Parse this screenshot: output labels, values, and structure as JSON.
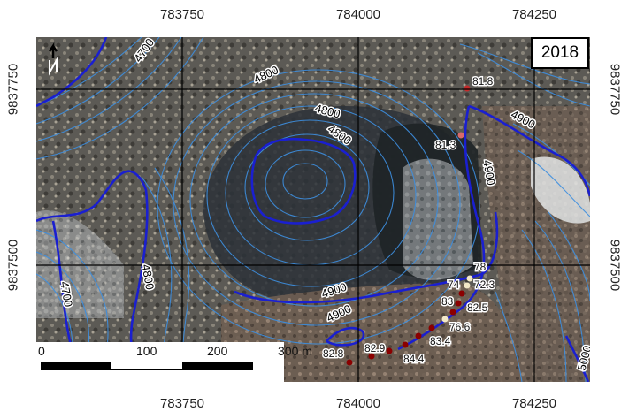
{
  "map": {
    "year": "2018",
    "x_ticks": [
      "783750",
      "784000",
      "784250"
    ],
    "y_ticks": [
      "9837750",
      "9837500"
    ],
    "contour_labels": [
      "4700",
      "4800",
      "4800",
      "4800",
      "4900",
      "4900",
      "4700",
      "4800",
      "4900",
      "4900",
      "5000"
    ],
    "measurements": [
      "81.8",
      "81.3",
      "78",
      "74",
      "72.3",
      "83",
      "82.5",
      "76.6",
      "83.4",
      "82.8",
      "82.9",
      "84.4"
    ],
    "scale": {
      "labels": [
        "0",
        "100",
        "200",
        "300 m"
      ]
    },
    "colors": {
      "major_contour": "#1a1fd0",
      "minor_contour": "#3d8fe0",
      "grid": "#000000",
      "points": "#8b0000"
    },
    "north_arrow": "north-arrow-icon"
  }
}
